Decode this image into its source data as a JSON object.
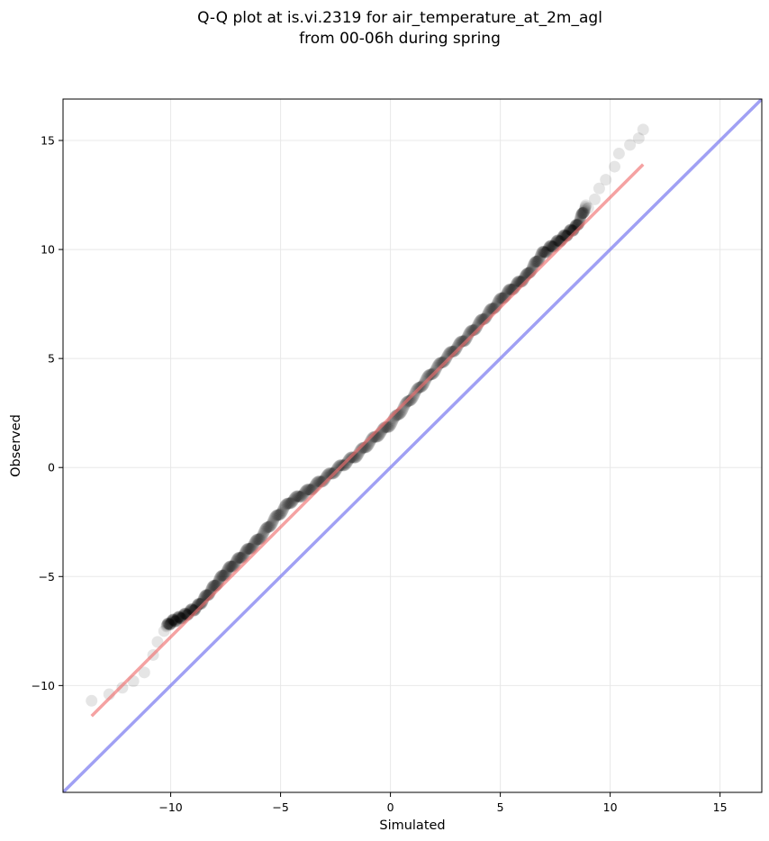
{
  "chart_data": {
    "type": "scatter",
    "title_lines": [
      "Q-Q plot at is.vi.2319 for air_temperature_at_2m_agl",
      "from 00-06h during spring"
    ],
    "xlabel": "Simulated",
    "ylabel": "Observed",
    "xlim": [
      -14.9,
      16.9
    ],
    "ylim": [
      -14.9,
      16.9
    ],
    "xticks": [
      -10,
      -5,
      0,
      5,
      10,
      15
    ],
    "yticks": [
      -10,
      -5,
      0,
      5,
      10,
      15
    ],
    "xtick_labels": [
      "−10",
      "−5",
      "0",
      "5",
      "10",
      "15"
    ],
    "ytick_labels": [
      "−10",
      "−5",
      "0",
      "5",
      "10",
      "15"
    ],
    "grid": true,
    "colors": {
      "points": "#000000",
      "fit_line": "#f07070",
      "identity_line": "#8080f0",
      "grid": "#e8e8e8"
    },
    "identity_line": {
      "x": [
        -14.9,
        16.9
      ],
      "y": [
        -14.9,
        16.9
      ]
    },
    "fit_line": {
      "x": [
        -13.6,
        11.5
      ],
      "y": [
        -11.4,
        13.9
      ]
    },
    "anchors": [
      [
        -13.6,
        -10.7
      ],
      [
        -12.8,
        -10.5
      ],
      [
        -12.3,
        -10.2
      ],
      [
        -11.8,
        -9.8
      ],
      [
        -11.3,
        -9.4
      ],
      [
        -10.9,
        -8.6
      ],
      [
        -10.5,
        -7.6
      ],
      [
        -10.0,
        -7.1
      ],
      [
        -9.4,
        -6.8
      ],
      [
        -8.8,
        -6.4
      ],
      [
        -8.3,
        -5.8
      ],
      [
        -7.5,
        -4.8
      ],
      [
        -6.8,
        -4.1
      ],
      [
        -6.0,
        -3.3
      ],
      [
        -5.3,
        -2.4
      ],
      [
        -4.6,
        -1.6
      ],
      [
        -3.8,
        -1.1
      ],
      [
        -3.0,
        -0.5
      ],
      [
        -2.2,
        0.1
      ],
      [
        -1.5,
        0.6
      ],
      [
        -0.8,
        1.3
      ],
      [
        0.0,
        2.0
      ],
      [
        0.8,
        3.0
      ],
      [
        1.6,
        4.0
      ],
      [
        2.5,
        5.0
      ],
      [
        3.4,
        5.9
      ],
      [
        4.3,
        6.9
      ],
      [
        5.2,
        7.9
      ],
      [
        6.2,
        8.8
      ],
      [
        6.9,
        9.8
      ],
      [
        7.8,
        10.5
      ],
      [
        8.5,
        11.1
      ],
      [
        8.9,
        12.0
      ],
      [
        9.4,
        12.8
      ],
      [
        9.8,
        13.3
      ],
      [
        10.3,
        13.9
      ],
      [
        10.8,
        14.5
      ],
      [
        11.2,
        15.0
      ],
      [
        11.5,
        15.5
      ]
    ],
    "tail_points": [
      [
        -13.6,
        -10.7
      ],
      [
        -12.8,
        -10.4
      ],
      [
        -12.2,
        -10.1
      ],
      [
        -11.7,
        -9.8
      ],
      [
        -11.2,
        -9.4
      ],
      [
        -10.8,
        -8.6
      ],
      [
        -10.6,
        -8.0
      ],
      [
        -10.3,
        -7.5
      ],
      [
        9.0,
        11.9
      ],
      [
        9.3,
        12.3
      ],
      [
        9.5,
        12.8
      ],
      [
        9.8,
        13.2
      ],
      [
        10.2,
        13.8
      ],
      [
        10.4,
        14.4
      ],
      [
        10.9,
        14.8
      ],
      [
        11.3,
        15.1
      ],
      [
        11.5,
        15.5
      ]
    ],
    "n_core_points": 700
  }
}
